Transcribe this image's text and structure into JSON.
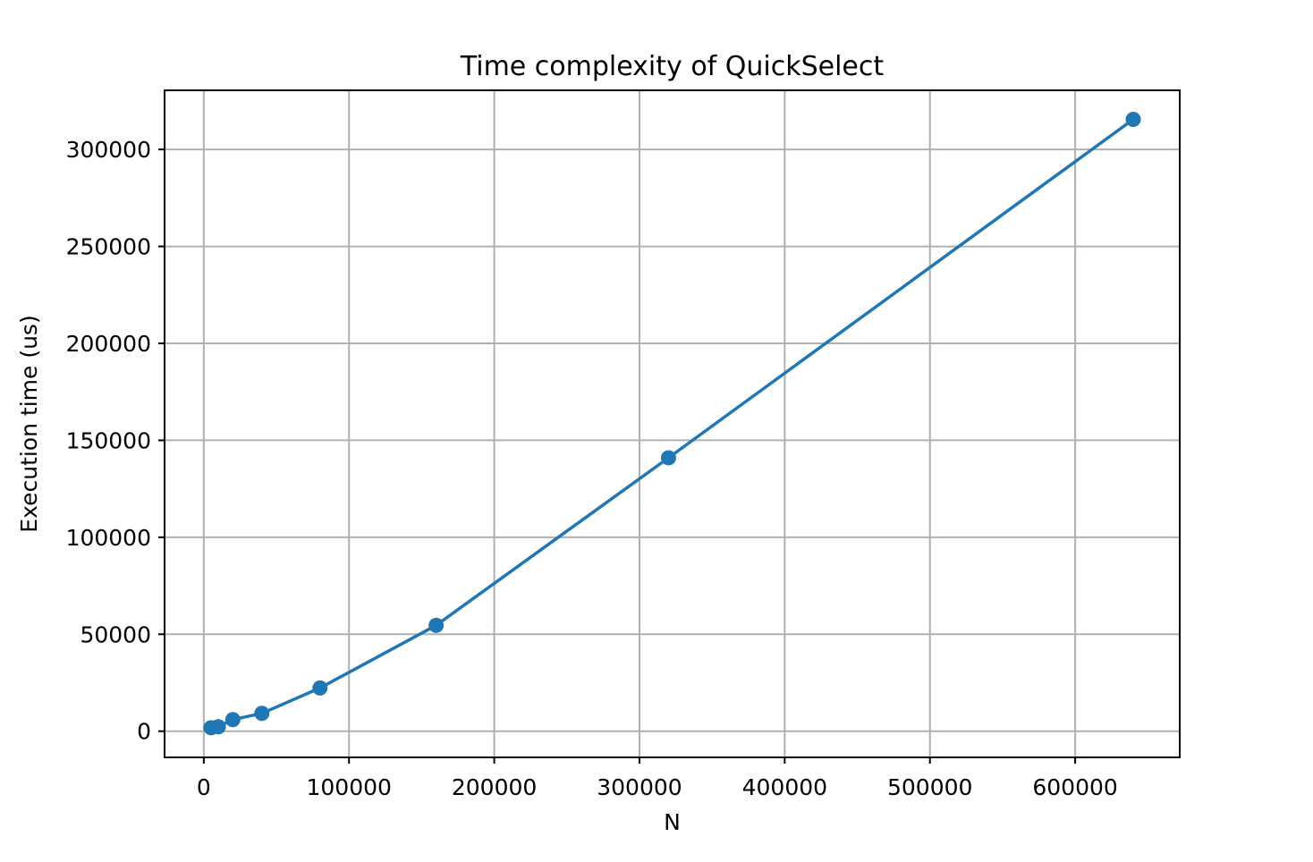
{
  "chart_data": {
    "type": "line",
    "title": "Time complexity of QuickSelect",
    "xlabel": "N",
    "ylabel": "Execution time (us)",
    "xlim": [
      -27000,
      672000
    ],
    "ylim": [
      -13500,
      330500
    ],
    "xticks": [
      0,
      100000,
      200000,
      300000,
      400000,
      500000,
      600000
    ],
    "yticks": [
      0,
      50000,
      100000,
      150000,
      200000,
      250000,
      300000
    ],
    "grid": true,
    "series": [
      {
        "color": "#1f77b4",
        "marker": "circle",
        "x": [
          5000,
          10000,
          20000,
          40000,
          80000,
          160000,
          320000,
          640000
        ],
        "y": [
          1800,
          2300,
          6000,
          9200,
          22300,
          54600,
          141000,
          315500
        ]
      }
    ]
  }
}
